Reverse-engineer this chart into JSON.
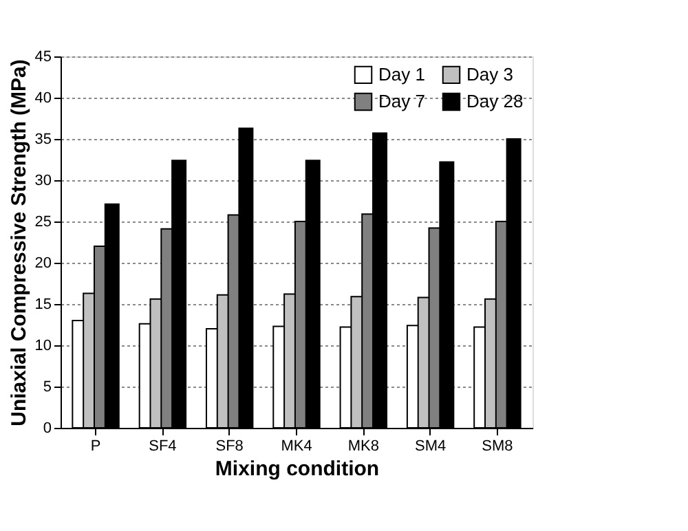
{
  "chart_data": {
    "type": "bar",
    "xlabel": "Mixing condition",
    "ylabel": "Uniaxial Compressive Strength (MPa)",
    "categories": [
      "P",
      "SF4",
      "SF8",
      "MK4",
      "MK8",
      "SM4",
      "SM8"
    ],
    "series": [
      {
        "name": "Day 1",
        "color": "#ffffff",
        "values": [
          13,
          12.6,
          12,
          12.3,
          12.2,
          12.4,
          12.2
        ]
      },
      {
        "name": "Day 3",
        "color": "#c0c0c0",
        "values": [
          16.3,
          15.6,
          16.1,
          16.2,
          15.9,
          15.8,
          15.6
        ]
      },
      {
        "name": "Day 7",
        "color": "#808080",
        "values": [
          22,
          24.1,
          25.8,
          25,
          25.9,
          24.2,
          25
        ]
      },
      {
        "name": "Day 28",
        "color": "#000000",
        "values": [
          27.1,
          32.4,
          36.3,
          32.4,
          35.7,
          32.2,
          35
        ]
      }
    ],
    "ylim": [
      0,
      45
    ],
    "yticks": [
      0,
      5,
      10,
      15,
      20,
      25,
      30,
      35,
      40,
      45
    ],
    "grid": "y",
    "legend": "top right"
  }
}
